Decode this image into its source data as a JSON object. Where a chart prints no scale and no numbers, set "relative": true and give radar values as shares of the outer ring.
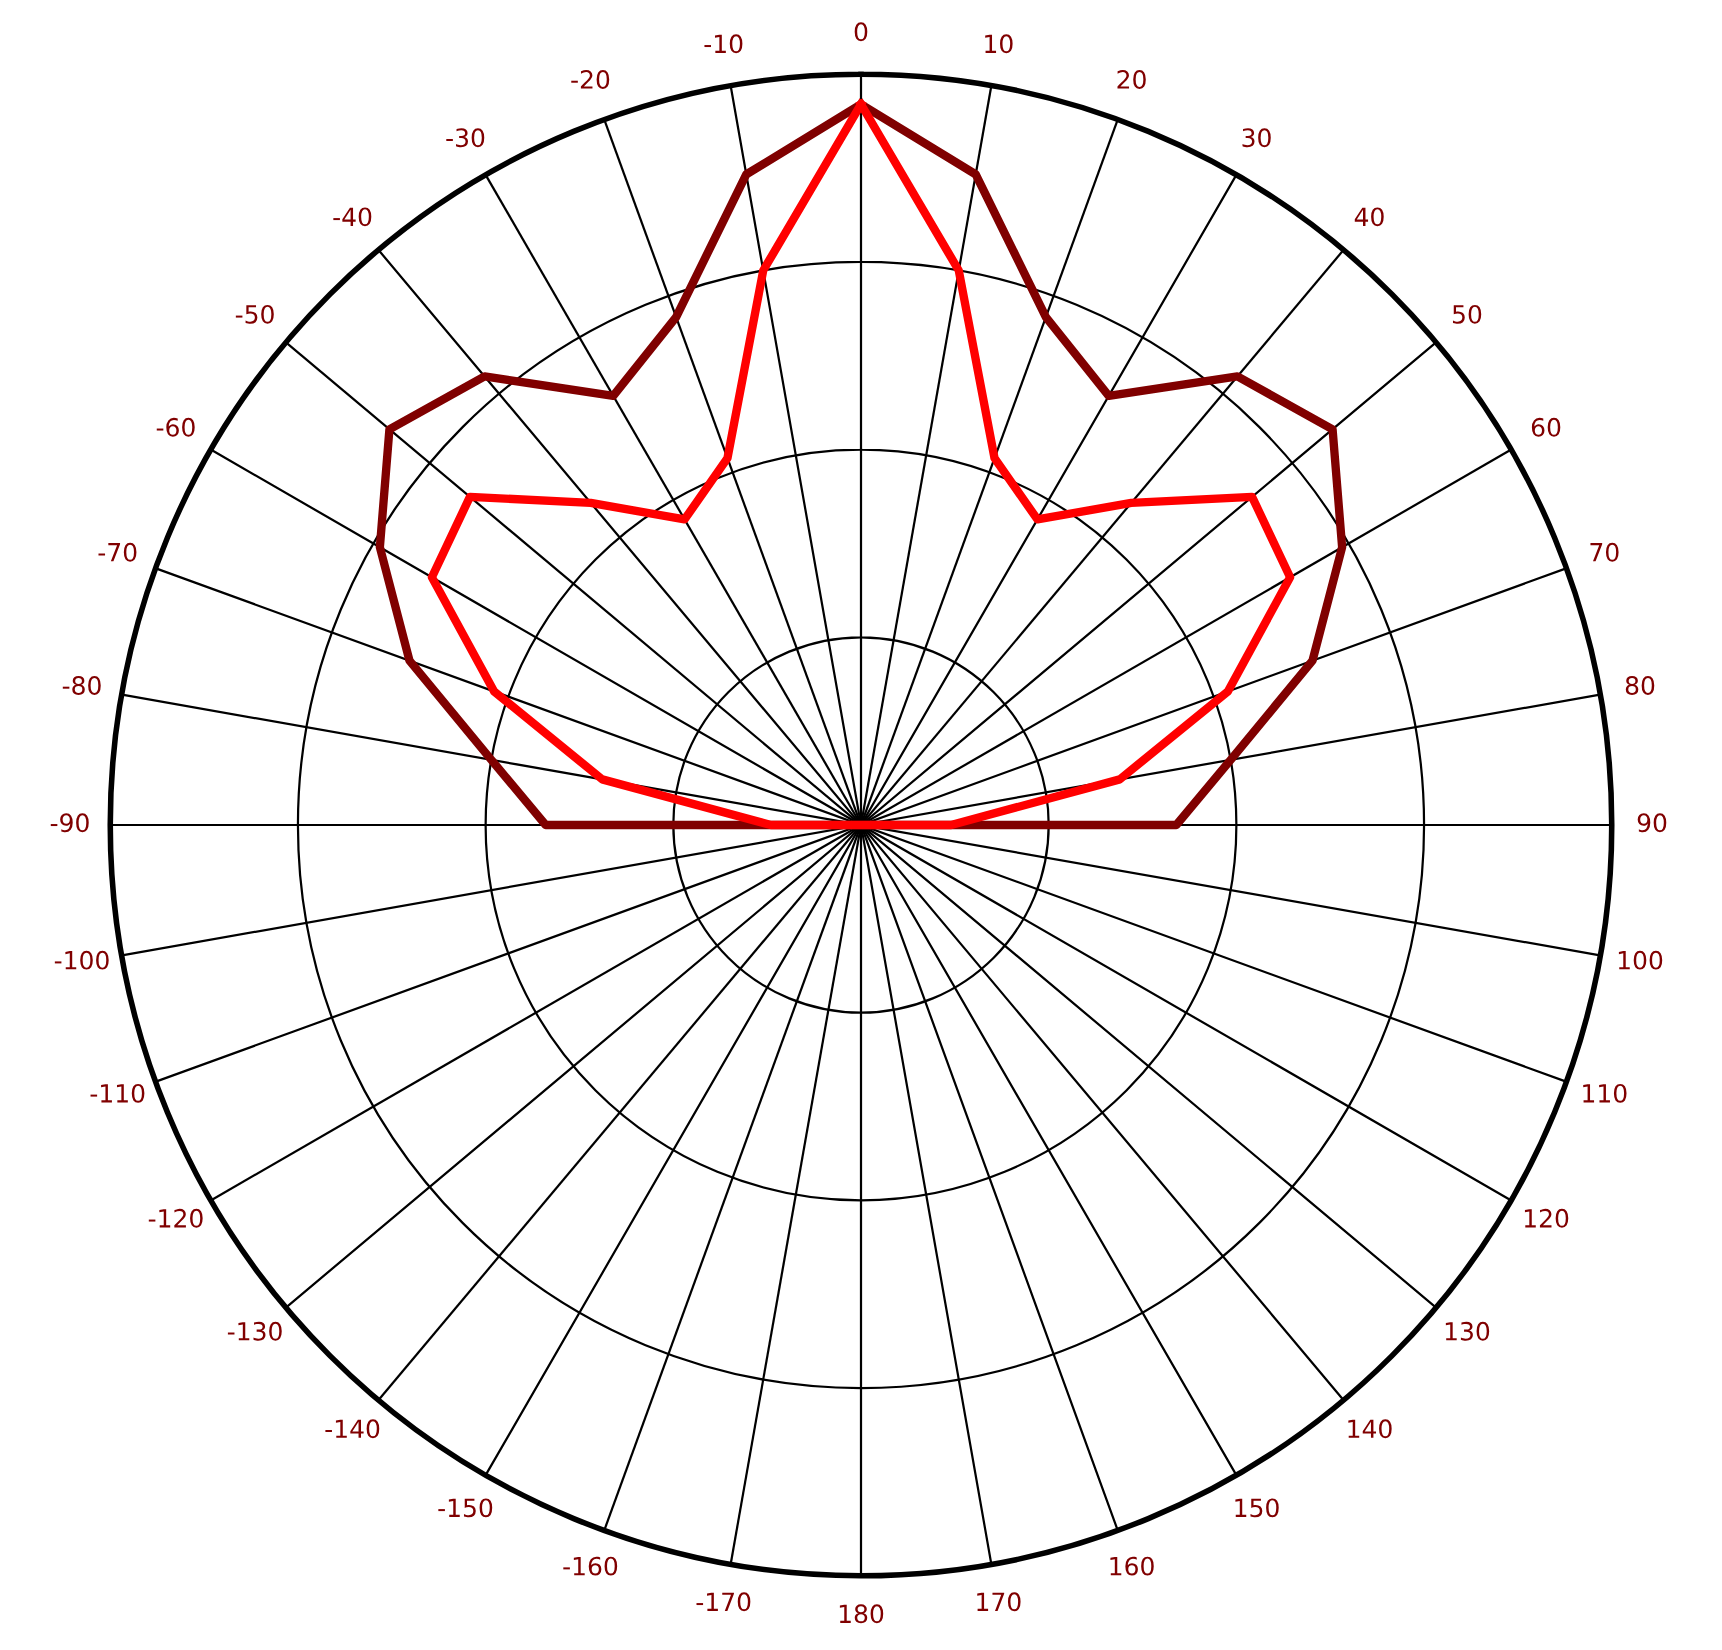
{
  "chart_data": {
    "type": "radar",
    "relative": true,
    "grid": true,
    "categories": [
      "0",
      "10",
      "20",
      "30",
      "40",
      "50",
      "60",
      "70",
      "80",
      "90",
      "100",
      "110",
      "120",
      "130",
      "140",
      "150",
      "160",
      "170",
      "180",
      "-170",
      "-160",
      "-150",
      "-140",
      "-130",
      "-120",
      "-110",
      "-100",
      "-90",
      "-80",
      "-70",
      "-60",
      "-50",
      "-40",
      "-30",
      "-20",
      "-10"
    ],
    "series": [
      {
        "color": "#800000",
        "values": [
          0.96,
          0.88,
          0.72,
          0.66,
          0.78,
          0.82,
          0.74,
          0.64,
          0.5,
          0.42,
          0,
          0,
          0,
          0,
          0,
          0,
          0,
          0,
          0,
          0,
          0,
          0,
          0,
          0,
          0,
          0,
          0,
          0.42,
          0.5,
          0.64,
          0.74,
          0.82,
          0.78,
          0.66,
          0.72,
          0.88
        ]
      },
      {
        "color": "#ff0000",
        "values": [
          0.96,
          0.75,
          0.52,
          0.47,
          0.56,
          0.68,
          0.66,
          0.52,
          0.35,
          0.12,
          0,
          0,
          0,
          0,
          0,
          0,
          0,
          0,
          0,
          0,
          0,
          0,
          0,
          0,
          0,
          0,
          0,
          0.12,
          0.35,
          0.52,
          0.66,
          0.68,
          0.56,
          0.47,
          0.52,
          0.75
        ]
      }
    ]
  }
}
